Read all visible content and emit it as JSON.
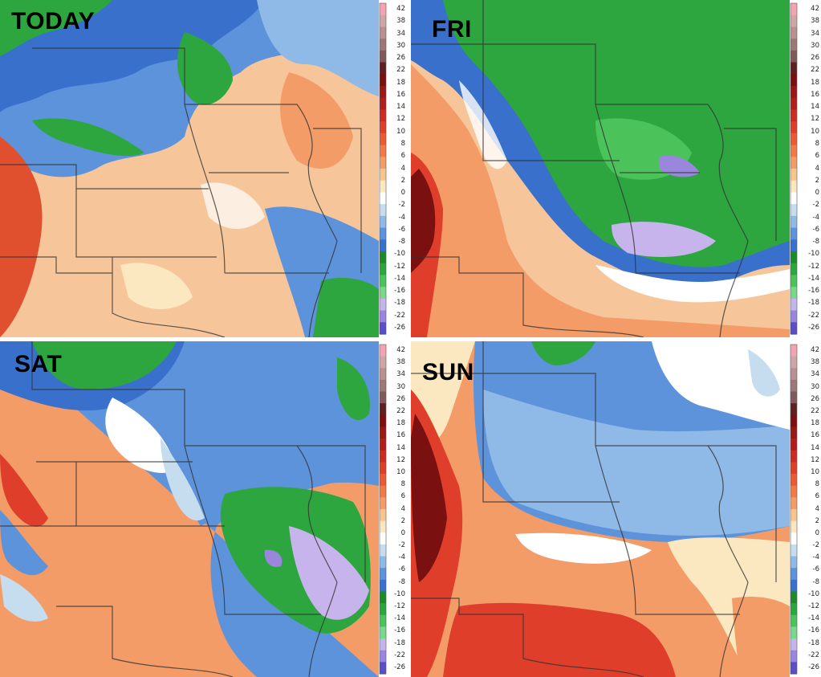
{
  "panels": [
    {
      "id": "today",
      "label": "TODAY"
    },
    {
      "id": "fri",
      "label": "FRI"
    },
    {
      "id": "sat",
      "label": "SAT"
    },
    {
      "id": "sun",
      "label": "SUN"
    }
  ],
  "colorbar": {
    "ticks": [
      "42",
      "38",
      "34",
      "30",
      "26",
      "22",
      "18",
      "16",
      "14",
      "12",
      "10",
      "8",
      "6",
      "4",
      "2",
      "0",
      "-2",
      "-4",
      "-6",
      "-8",
      "-10",
      "-12",
      "-14",
      "-16",
      "-18",
      "-22",
      "-26"
    ],
    "colors": [
      "#f4a3b0",
      "#cfa6a8",
      "#b89090",
      "#9c7878",
      "#805a5a",
      "#5e2020",
      "#7a1010",
      "#981818",
      "#b21e1e",
      "#cc2a22",
      "#df3e2a",
      "#ea5a36",
      "#f07a48",
      "#f39c68",
      "#f7c690",
      "#fbe8c0",
      "#ffffff",
      "#c6dcef",
      "#8fb9e6",
      "#5d93db",
      "#3870cc",
      "#1e8a2a",
      "#2ea640",
      "#4cc25a",
      "#7ad88a",
      "#c8b4ec",
      "#9b86de",
      "#5b4fc8"
    ]
  }
}
